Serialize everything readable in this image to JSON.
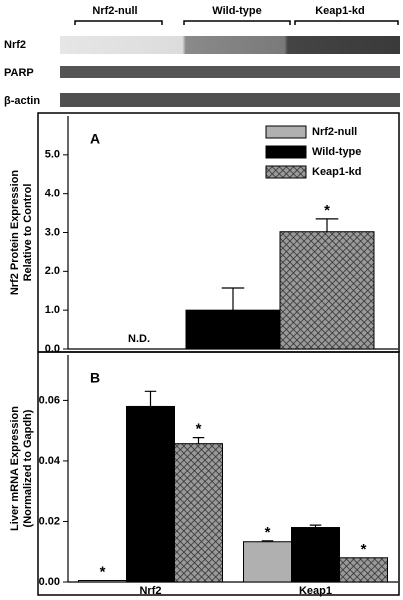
{
  "blot": {
    "groups": [
      "Nrf2-null",
      "Wild-type",
      "Keap1-kd"
    ],
    "rows": [
      "Nrf2",
      "PARP",
      "β-actin"
    ]
  },
  "chart_data": [
    {
      "type": "bar",
      "panel_label": "A",
      "ylabel": [
        "Nrf2 Protein Expression",
        "Relative to Control"
      ],
      "categories": [
        null
      ],
      "series": [
        {
          "name": "Nrf2-null",
          "color": "#b0b0b0",
          "values": [
            null
          ],
          "value_labels": [
            "N.D."
          ],
          "errors": [
            null
          ],
          "significance": [
            null
          ]
        },
        {
          "name": "Wild-type",
          "color": "#000000",
          "values": [
            1.0
          ],
          "errors": [
            0.57
          ],
          "significance": [
            null
          ]
        },
        {
          "name": "Keap1-kd",
          "color": "#808080",
          "pattern": "crosshatch",
          "values": [
            3.02
          ],
          "errors": [
            0.33
          ],
          "significance": [
            "*"
          ]
        }
      ],
      "ylim": [
        0,
        6
      ],
      "yticks": [
        {
          "value": 0,
          "label": "0.0"
        },
        {
          "value": 1,
          "label": "1.0"
        },
        {
          "value": 2,
          "label": "2.0"
        },
        {
          "value": 3,
          "label": "3.0"
        },
        {
          "value": 4,
          "label": "4.0"
        },
        {
          "value": 5,
          "label": "5.0"
        }
      ],
      "legend": "upper right"
    },
    {
      "type": "bar",
      "panel_label": "B",
      "ylabel": [
        "Liver mRNA Expression",
        "(Normalized to Gapdh)"
      ],
      "categories": [
        "Nrf2",
        "Keap1"
      ],
      "series": [
        {
          "name": "Nrf2-null",
          "color": "#b0b0b0",
          "values": [
            0.0005,
            0.0133
          ],
          "errors": [
            null,
            0.0003
          ],
          "significance": [
            "*",
            "*"
          ]
        },
        {
          "name": "Wild-type",
          "color": "#000000",
          "values": [
            0.058,
            0.018
          ],
          "errors": [
            0.005,
            0.0008
          ],
          "significance": [
            null,
            null
          ]
        },
        {
          "name": "Keap1-kd",
          "color": "#808080",
          "pattern": "crosshatch",
          "values": [
            0.0457,
            0.008
          ],
          "errors": [
            0.002,
            null
          ],
          "significance": [
            "*",
            "*"
          ]
        }
      ],
      "ylim": [
        0,
        0.075
      ],
      "yticks": [
        {
          "value": 0,
          "label": "0.00"
        },
        {
          "value": 0.02,
          "label": "0.02"
        },
        {
          "value": 0.04,
          "label": "0.04"
        },
        {
          "value": 0.06,
          "label": "0.06"
        }
      ]
    }
  ]
}
